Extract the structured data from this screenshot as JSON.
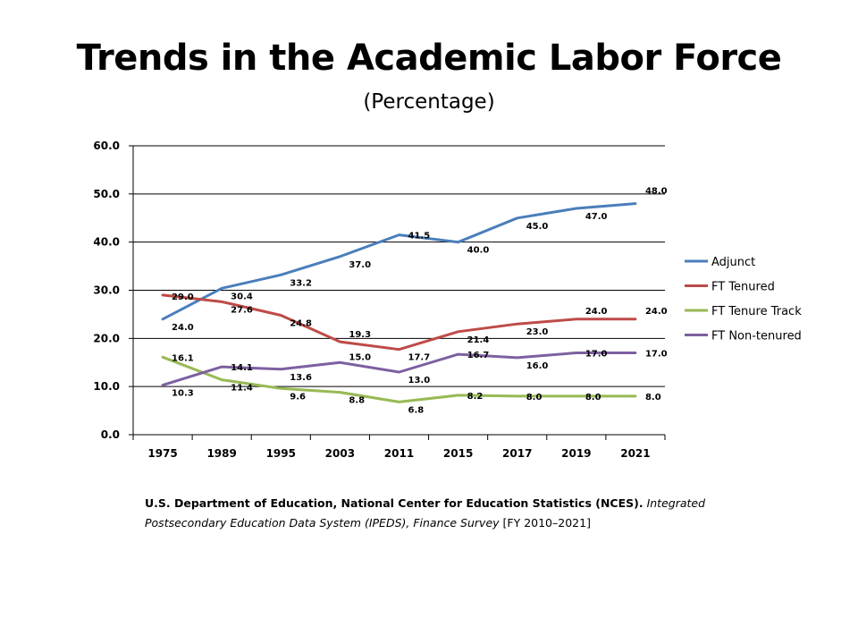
{
  "title": "Trends in the Academic Labor Force",
  "subtitle": "(Percentage)",
  "source": {
    "bold_part": "U.S. Department of Education, National Center for Education Statistics (NCES).",
    "italic_part": "Integrated Postsecondary Education Data System (IPEDS), Finance Survey",
    "tail_part": "[FY 2010–2021]"
  },
  "chart_data": {
    "type": "line",
    "categories": [
      "1975",
      "1989",
      "1995",
      "2003",
      "2011",
      "2015",
      "2017",
      "2019",
      "2021"
    ],
    "ylim": [
      0,
      60
    ],
    "yticks": [
      "0.0",
      "10.0",
      "20.0",
      "30.0",
      "40.0",
      "50.0",
      "60.0"
    ],
    "grid": true,
    "legend_position": "right",
    "series": [
      {
        "name": "Adjunct",
        "color": "#4a7ebb",
        "values": [
          24.0,
          30.4,
          33.2,
          37.0,
          41.5,
          40.0,
          45.0,
          47.0,
          48.0
        ],
        "labels": [
          "24.0",
          "30.4",
          "33.2",
          "37.0",
          "41.5",
          "40.0",
          "45.0",
          "47.0",
          "48.0"
        ]
      },
      {
        "name": "FT Tenured",
        "color": "#be4b48",
        "values": [
          29.0,
          27.6,
          24.8,
          19.3,
          17.7,
          21.4,
          23.0,
          24.0,
          24.0
        ],
        "labels": [
          "29.0",
          "27.6",
          "24.8",
          "19.3",
          "17.7",
          "21.4",
          "23.0",
          "24.0",
          "24.0"
        ]
      },
      {
        "name": "FT Tenure Track",
        "color": "#98b954",
        "values": [
          16.1,
          11.4,
          9.6,
          8.8,
          6.8,
          8.2,
          8.0,
          8.0,
          8.0
        ],
        "labels": [
          "16.1",
          "11.4",
          "9.6",
          "8.8",
          "6.8",
          "8.2",
          "8.0",
          "8.0",
          "8.0"
        ]
      },
      {
        "name": "FT Non-tenured",
        "color": "#7d60a0",
        "values": [
          10.3,
          14.1,
          13.6,
          15.0,
          13.0,
          16.7,
          16.0,
          17.0,
          17.0
        ],
        "labels": [
          "10.3",
          "14.1",
          "13.6",
          "15.0",
          "13.0",
          "16.7",
          "16.0",
          "17.0",
          "17.0"
        ]
      }
    ]
  }
}
